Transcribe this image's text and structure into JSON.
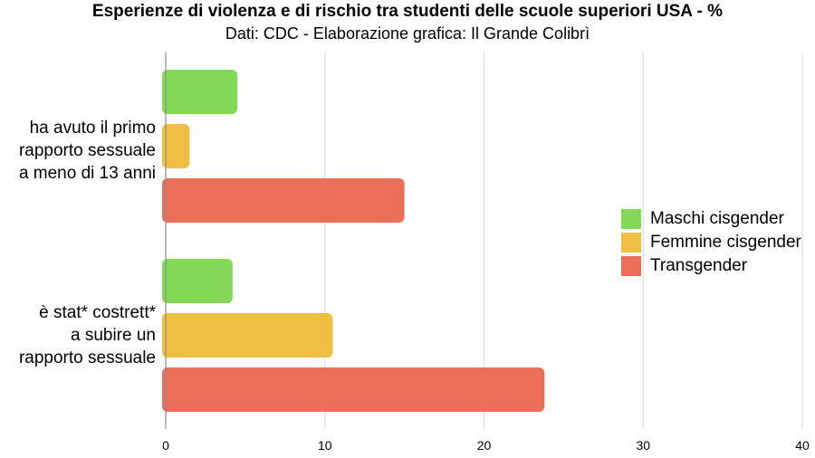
{
  "chart_data": {
    "type": "bar",
    "orientation": "horizontal",
    "title": "Esperienze di violenza e di rischio tra studenti delle scuole superiori USA - %",
    "subtitle": "Dati: CDC - Elaborazione grafica: Il Grande Colibrì",
    "categories": [
      "ha avuto il primo\nrapporto sessuale\na meno di 13 anni",
      "è stat* costrett*\na  subire un\nrapporto sessuale"
    ],
    "series": [
      {
        "name": "Maschi cisgender",
        "color": "#82d957",
        "values": [
          4.5,
          4.2
        ]
      },
      {
        "name": "Femmine cisgender",
        "color": "#eebf42",
        "values": [
          1.5,
          10.5
        ]
      },
      {
        "name": "Transgender",
        "color": "#ec6f5a",
        "values": [
          15.0,
          23.8
        ]
      }
    ],
    "xlim": [
      0,
      40
    ],
    "xticks": [
      "0",
      "10",
      "20",
      "30",
      "40"
    ],
    "grid": true,
    "legend_position": "right"
  }
}
